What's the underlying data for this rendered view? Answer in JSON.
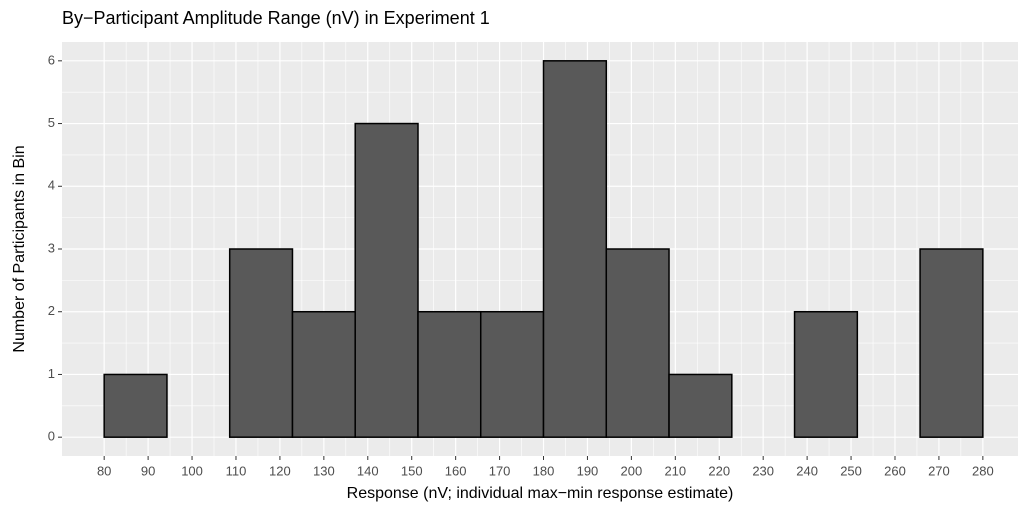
{
  "chart_data": {
    "type": "histogram",
    "title": "By−Participant Amplitude Range (nV) in Experiment 1",
    "x_label": "Response (nV; individual max−min response estimate)",
    "y_label": "Number of Participants in Bin",
    "bins": [
      80,
      94.29,
      108.57,
      122.86,
      137.14,
      151.43,
      165.71,
      180,
      194.29,
      208.57,
      222.86,
      237.14,
      251.43,
      265.71,
      280
    ],
    "values": [
      1,
      0,
      3,
      2,
      5,
      2,
      2,
      6,
      3,
      1,
      0,
      2,
      0,
      3
    ],
    "color": "#595959",
    "xlim": [
      70.4,
      288
    ],
    "xticks": [
      80,
      90,
      100,
      110,
      120,
      130,
      140,
      150,
      160,
      170,
      180,
      190,
      200,
      210,
      220,
      230,
      240,
      250,
      260,
      270,
      280
    ],
    "ylim": [
      -0.3,
      6.3
    ],
    "yticks": [
      0,
      1,
      2,
      3,
      4,
      5,
      6
    ],
    "grid": true
  }
}
